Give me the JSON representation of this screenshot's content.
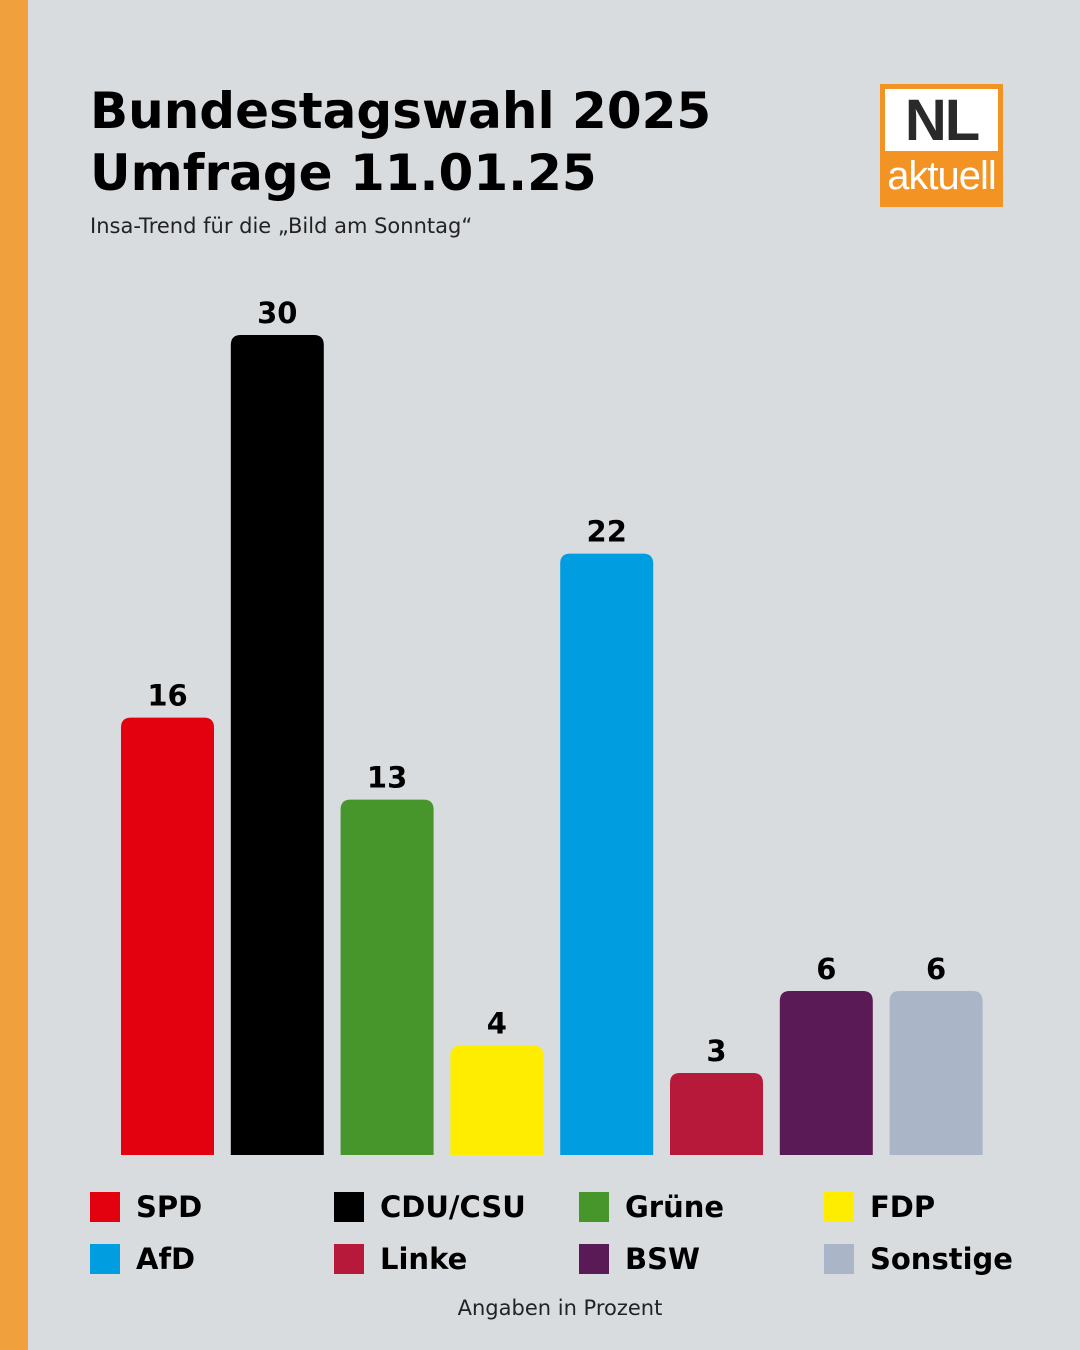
{
  "header": {
    "title_line1": "Bundestagswahl 2025",
    "title_line2": "Umfrage 11.01.25",
    "subtitle": "Insa-Trend für die „Bild am Sonntag“"
  },
  "logo": {
    "top_text": "NL",
    "bottom_text": "aktuell",
    "color": "#f39324"
  },
  "chart_data": {
    "type": "bar",
    "title": "Bundestagswahl 2025 Umfrage 11.01.25",
    "subtitle": "Insa-Trend für die „Bild am Sonntag“",
    "categories": [
      "SPD",
      "CDU/CSU",
      "Grüne",
      "FDP",
      "AfD",
      "Linke",
      "BSW",
      "Sonstige"
    ],
    "values": [
      16,
      30,
      13,
      4,
      22,
      3,
      6,
      6
    ],
    "colors": [
      "#e3000f",
      "#000000",
      "#46962b",
      "#ffed00",
      "#009ee0",
      "#b7193a",
      "#5a1a55",
      "#aab5c8"
    ],
    "value_labels": [
      "16",
      "30",
      "13",
      "4",
      "22",
      "3",
      "6",
      "6"
    ],
    "ylim": [
      0,
      30
    ],
    "grid": false,
    "legend": "bottom",
    "note": "Angaben in Prozent"
  },
  "footnote": "Angaben in Prozent"
}
